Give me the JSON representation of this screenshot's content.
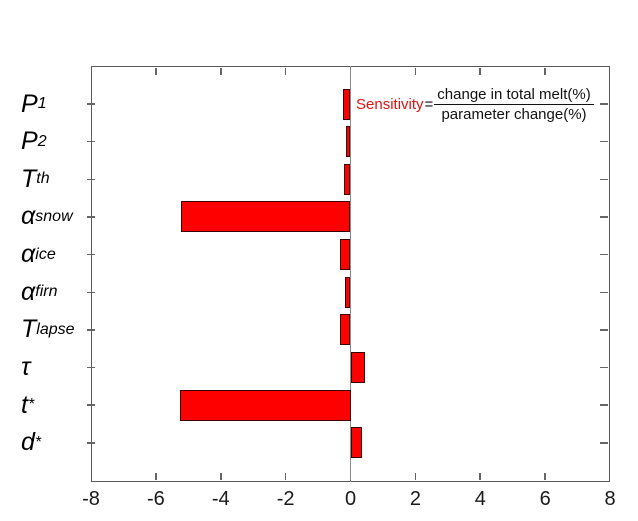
{
  "figure": {
    "colors": {
      "bar_fill": "#ff0000",
      "bar_edge": "#3c0000",
      "axis": "#5a5a5a",
      "zero_line": "#8a8a8a",
      "tick": "#666666",
      "text": "#1a1a1a",
      "annotation_red": "#e01212"
    }
  },
  "annotation": {
    "label": "Sensitivity",
    "equals": "=",
    "numerator": "change in total melt(%)",
    "denominator": "parameter change(%)"
  },
  "chart_data": {
    "type": "bar",
    "orientation": "horizontal",
    "title": "",
    "xlabel": "",
    "ylabel": "",
    "xlim": [
      -8,
      8
    ],
    "xticks": [
      -8,
      -6,
      -4,
      -2,
      0,
      2,
      4,
      6,
      8
    ],
    "xtick_labels": [
      "-8",
      "-6",
      "-4",
      "-2",
      "0",
      "2",
      "4",
      "6",
      "8"
    ],
    "categories": [
      "P1",
      "P2",
      "Tth",
      "alpha_snow",
      "alpha_ice",
      "alpha_firn",
      "T_lapse",
      "tau",
      "t*",
      "d*"
    ],
    "categories_rich": [
      {
        "main": "P",
        "sub": "1"
      },
      {
        "main": "P",
        "sub": "2"
      },
      {
        "main": "T",
        "sub": "th"
      },
      {
        "main": "α",
        "sub": "snow"
      },
      {
        "main": "α",
        "sub": "ice"
      },
      {
        "main": "α",
        "sub": "firn"
      },
      {
        "main": "T",
        "sub": "lapse"
      },
      {
        "main": "τ"
      },
      {
        "main": "t",
        "sup": "*"
      },
      {
        "main": "d",
        "sup": "*"
      }
    ],
    "values": [
      -0.23,
      -0.14,
      -0.2,
      -5.22,
      -0.32,
      -0.17,
      -0.32,
      0.46,
      -5.25,
      0.35
    ],
    "grid": false,
    "zero_line": true,
    "legend": null
  }
}
